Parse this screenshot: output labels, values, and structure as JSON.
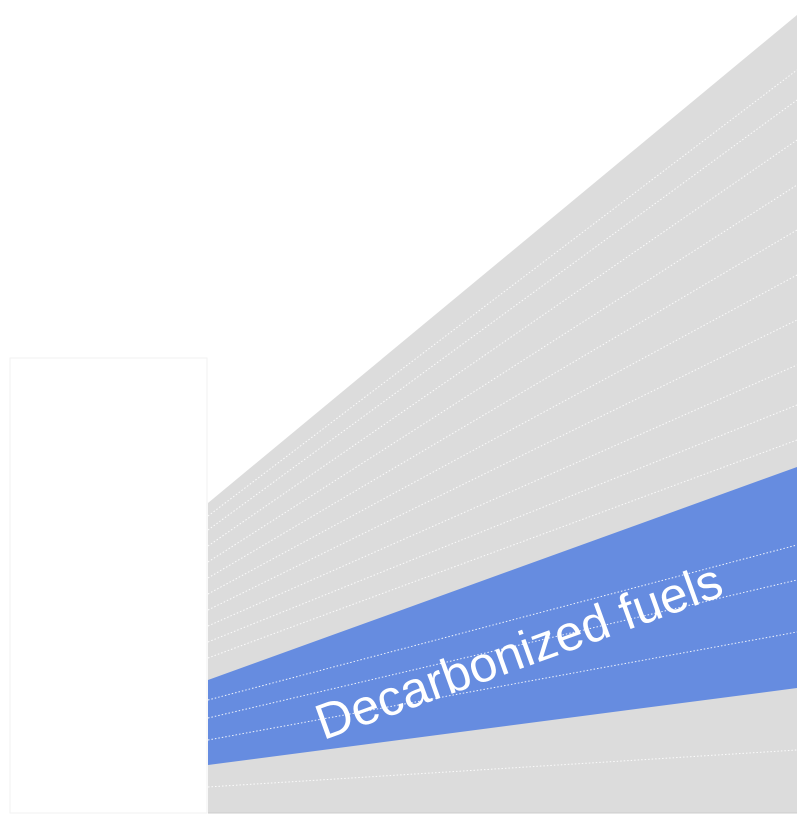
{
  "label": "Decarbonized fuels"
}
